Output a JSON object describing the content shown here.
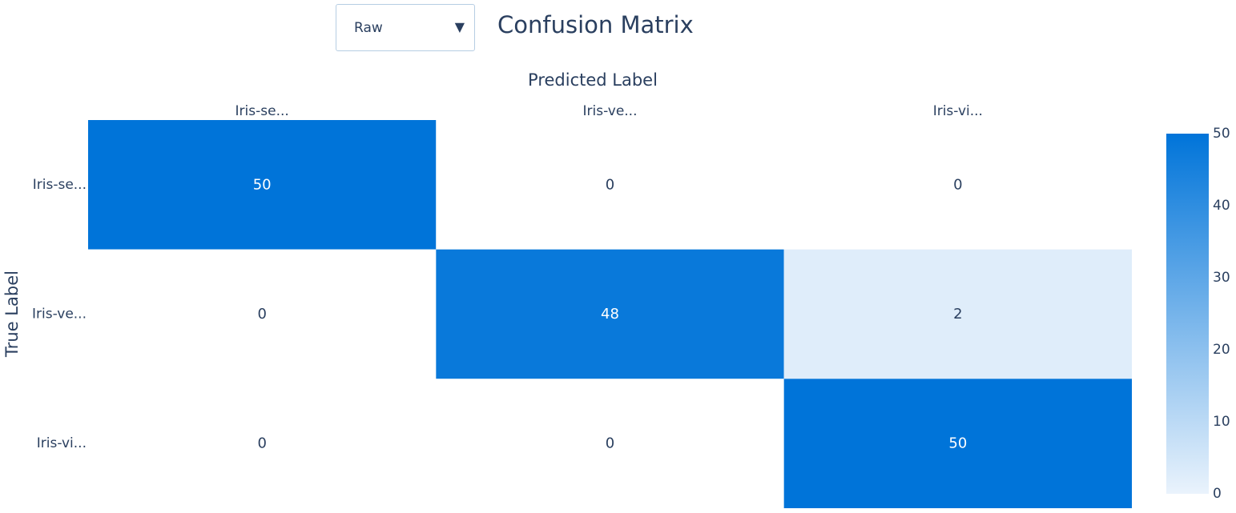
{
  "dropdown": {
    "selected": "Raw"
  },
  "chart_data": {
    "type": "heatmap",
    "title": "Confusion Matrix",
    "xlabel": "Predicted Label",
    "ylabel": "True Label",
    "x_categories": [
      "Iris-se...",
      "Iris-ve...",
      "Iris-vi..."
    ],
    "y_categories": [
      "Iris-se...",
      "Iris-ve...",
      "Iris-vi..."
    ],
    "values": [
      [
        50,
        0,
        0
      ],
      [
        0,
        48,
        2
      ],
      [
        0,
        0,
        50
      ]
    ],
    "colorscale": {
      "low": "#ffffff",
      "high": "#0074d9"
    },
    "zmin": 0,
    "zmax": 50,
    "colorbar_ticks": [
      0,
      10,
      20,
      30,
      40,
      50
    ],
    "x_axis_position": "top",
    "grid": false
  }
}
